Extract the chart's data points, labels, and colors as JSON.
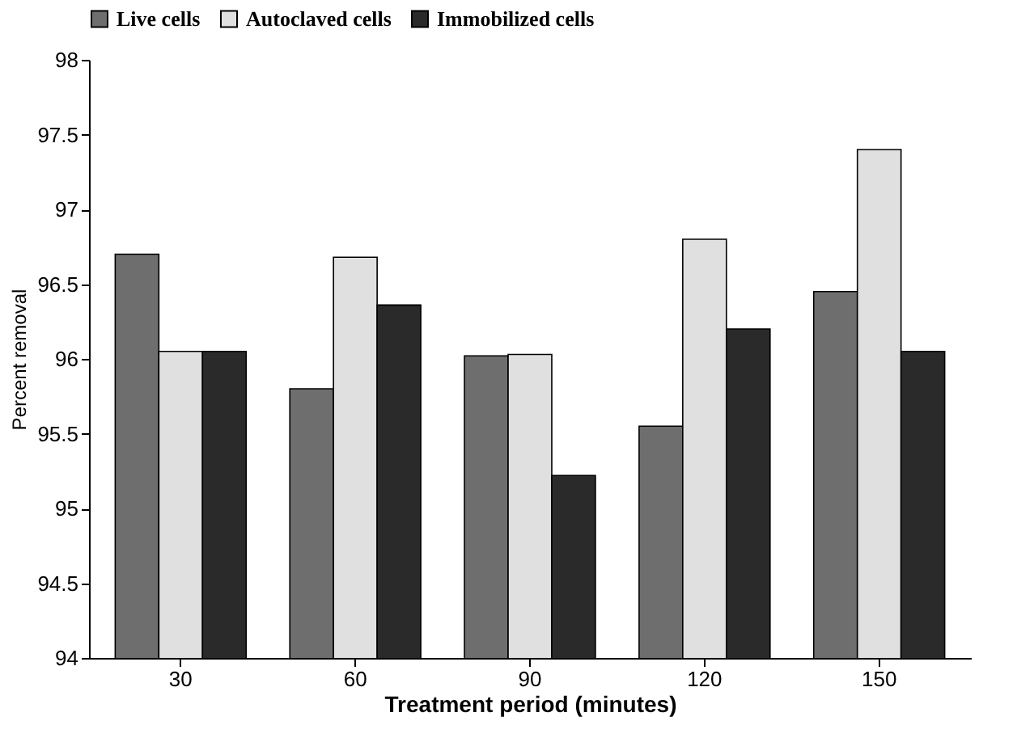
{
  "chart_data": {
    "type": "bar",
    "xlabel": "Treatment period (minutes)",
    "ylabel": "Percent removal",
    "categories": [
      "30",
      "60",
      "90",
      "120",
      "150"
    ],
    "series": [
      {
        "name": "Live cells",
        "color": "#6e6e6e",
        "values": [
          96.7,
          95.8,
          96.02,
          95.55,
          96.45
        ]
      },
      {
        "name": "Autoclaved cells",
        "color": "#e0e0e0",
        "values": [
          96.05,
          96.68,
          96.03,
          96.8,
          97.4
        ]
      },
      {
        "name": "Immobilized cells",
        "color": "#2a2a2a",
        "values": [
          96.05,
          96.36,
          95.22,
          96.2,
          96.05
        ]
      }
    ],
    "ylim": [
      94,
      98
    ],
    "yticks": [
      94,
      94.5,
      95,
      95.5,
      96,
      96.5,
      97,
      97.5,
      98
    ],
    "grid": false,
    "legend": "top"
  }
}
